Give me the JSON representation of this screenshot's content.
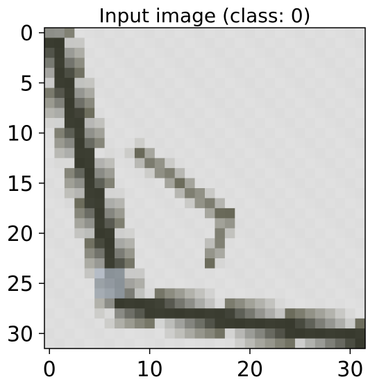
{
  "figure": {
    "title": "Input image (class: 0)"
  },
  "chart_data": {
    "type": "heatmap",
    "title": "Input image (class: 0)",
    "xlabel": "",
    "ylabel": "",
    "xlim": [
      -0.5,
      31.5
    ],
    "ylim": [
      31.5,
      -0.5
    ],
    "xticks": [
      0,
      10,
      20,
      30
    ],
    "yticks": [
      0,
      5,
      10,
      15,
      20,
      25,
      30
    ],
    "grid": false,
    "colors": {
      "background": "#dedede",
      "dark": "#3a3c30",
      "mid": "#6a6a5a",
      "highlight": "#aeb8c6"
    }
  }
}
